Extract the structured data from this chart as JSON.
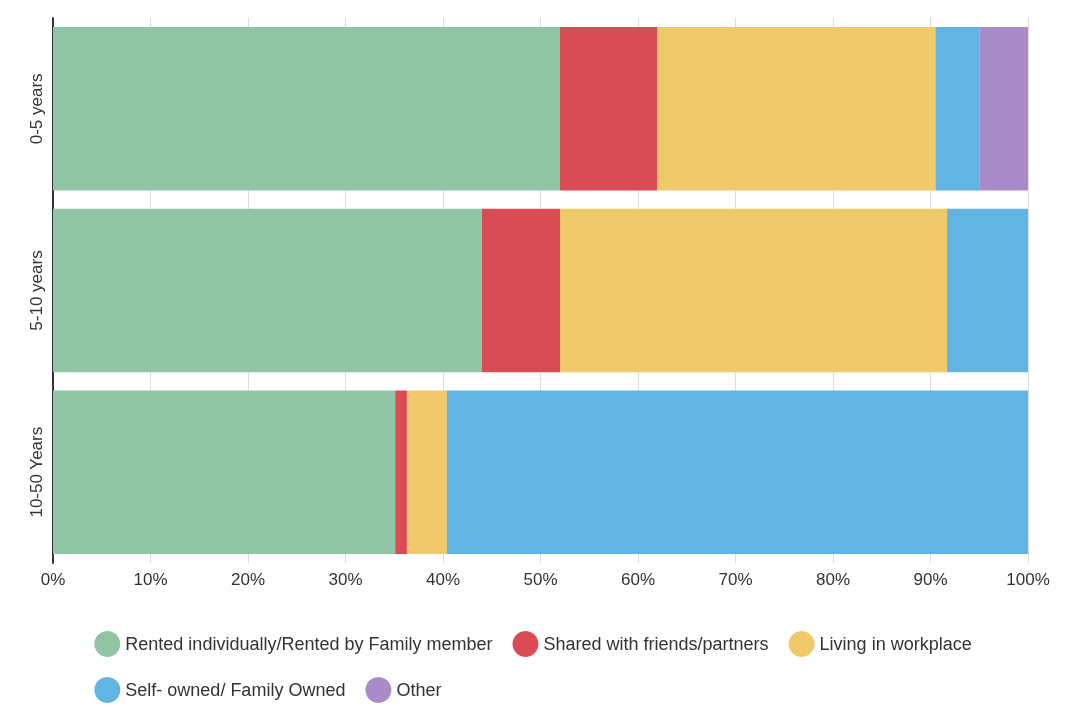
{
  "chart_data": {
    "type": "bar",
    "orientation": "horizontal",
    "stacked": true,
    "categories": [
      "0-5 years",
      "5-10 years",
      "10-50 Years"
    ],
    "series": [
      {
        "name": "Rented individually/Rented by Family member",
        "color": "#8fc5a5",
        "values": [
          52,
          44,
          35.1
        ]
      },
      {
        "name": "Shared with friends/partners",
        "color": "#d94b55",
        "values": [
          10,
          8,
          1.2
        ]
      },
      {
        "name": "Living in workplace",
        "color": "#efc96a",
        "values": [
          28.5,
          39.7,
          4.1
        ]
      },
      {
        "name": "Self- owned/ Family Owned",
        "color": "#62b4e3",
        "values": [
          4.5,
          8.3,
          59.6
        ]
      },
      {
        "name": "Other",
        "color": "#a98bc9",
        "values": [
          5,
          0,
          0
        ]
      }
    ],
    "xlim": [
      0,
      100
    ],
    "xticks": [
      {
        "value": 0,
        "label": "0%"
      },
      {
        "value": 10,
        "label": "10%"
      },
      {
        "value": 20,
        "label": "20%"
      },
      {
        "value": 30,
        "label": "30%"
      },
      {
        "value": 40,
        "label": "40%"
      },
      {
        "value": 50,
        "label": "50%"
      },
      {
        "value": 60,
        "label": "60%"
      },
      {
        "value": 70,
        "label": "70%"
      },
      {
        "value": 80,
        "label": "80%"
      },
      {
        "value": 90,
        "label": "90%"
      },
      {
        "value": 100,
        "label": "100%"
      }
    ],
    "grid": "x",
    "legend": "bottom"
  }
}
